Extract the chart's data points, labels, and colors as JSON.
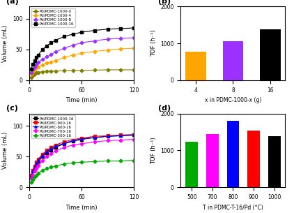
{
  "panel_a": {
    "label": "(a)",
    "xlabel": "Time (min)",
    "ylabel": "Volume (mL)",
    "xlim": [
      0,
      120
    ],
    "ylim": [
      0,
      120
    ],
    "xticks": [
      0,
      60,
      120
    ],
    "yticks": [
      0,
      50,
      100
    ],
    "series": [
      {
        "name": "Pd/PDMC-1000-0",
        "color": "#808000",
        "marker": "D",
        "time": [
          2,
          4,
          6,
          8,
          10,
          15,
          20,
          25,
          30,
          40,
          50,
          60,
          75,
          90,
          105,
          120
        ],
        "volume": [
          5,
          8,
          10,
          12,
          13,
          14,
          14.5,
          15,
          15,
          15.5,
          16,
          16,
          16.5,
          17,
          17,
          17
        ]
      },
      {
        "name": "Pd/PDMC-1000-4",
        "color": "#FFA500",
        "marker": "D",
        "time": [
          2,
          4,
          6,
          8,
          10,
          15,
          20,
          25,
          30,
          40,
          50,
          60,
          75,
          90,
          105,
          120
        ],
        "volume": [
          10,
          15,
          18,
          20,
          22,
          25,
          28,
          30,
          32,
          37,
          41,
          44,
          47,
          49,
          51,
          52
        ]
      },
      {
        "name": "Pd/PDMC-1000-8",
        "color": "#9B30FF",
        "marker": "D",
        "time": [
          2,
          4,
          6,
          8,
          10,
          15,
          20,
          25,
          30,
          40,
          50,
          60,
          75,
          90,
          105,
          120
        ],
        "volume": [
          12,
          18,
          22,
          26,
          29,
          34,
          38,
          42,
          46,
          52,
          57,
          61,
          64,
          67,
          68,
          69
        ]
      },
      {
        "name": "Pd/PDMC-1000-16",
        "color": "#000000",
        "marker": "s",
        "time": [
          2,
          4,
          6,
          8,
          10,
          15,
          20,
          25,
          30,
          40,
          50,
          60,
          75,
          90,
          105,
          120
        ],
        "volume": [
          18,
          26,
          32,
          37,
          41,
          50,
          56,
          61,
          65,
          71,
          75,
          78,
          81,
          83,
          84,
          85
        ]
      }
    ]
  },
  "panel_b": {
    "label": "(b)",
    "xlabel": "x in PDMC-1000-x (g)",
    "ylabel": "TOF (h⁻¹)",
    "ylim": [
      0,
      2000
    ],
    "yticks": [
      0,
      1000,
      2000
    ],
    "categories": [
      "4",
      "8",
      "16"
    ],
    "values": [
      780,
      1060,
      1380
    ],
    "colors": [
      "#FFA500",
      "#9B30FF",
      "#000000"
    ]
  },
  "panel_c": {
    "label": "(c)",
    "xlabel": "Time (min)",
    "ylabel": "Volume (mL)",
    "xlim": [
      0,
      120
    ],
    "ylim": [
      0,
      120
    ],
    "xticks": [
      0,
      60,
      120
    ],
    "yticks": [
      0,
      50,
      100
    ],
    "series": [
      {
        "name": "Pd/PDMC-1000-16",
        "color": "#000000",
        "marker": "s",
        "time": [
          2,
          4,
          6,
          8,
          10,
          15,
          20,
          25,
          30,
          40,
          50,
          60,
          75,
          90,
          105,
          120
        ],
        "volume": [
          18,
          26,
          32,
          37,
          41,
          50,
          56,
          61,
          65,
          71,
          75,
          78,
          81,
          83,
          84,
          85
        ]
      },
      {
        "name": "Pd/PDMC-900-16",
        "color": "#FF0000",
        "marker": "s",
        "time": [
          2,
          4,
          6,
          8,
          10,
          15,
          20,
          25,
          30,
          40,
          50,
          60,
          75,
          90,
          105,
          120
        ],
        "volume": [
          20,
          28,
          35,
          41,
          46,
          54,
          60,
          65,
          69,
          74,
          78,
          80,
          83,
          84,
          85,
          86
        ]
      },
      {
        "name": "Pd/PDMC-800-16",
        "color": "#0000FF",
        "marker": "^",
        "time": [
          2,
          4,
          6,
          8,
          10,
          15,
          20,
          25,
          30,
          40,
          50,
          60,
          75,
          90,
          105,
          120
        ],
        "volume": [
          18,
          26,
          33,
          39,
          44,
          52,
          58,
          63,
          67,
          72,
          76,
          79,
          81,
          83,
          84,
          85
        ]
      },
      {
        "name": "Pd/PDMC-700-16",
        "color": "#FF00FF",
        "marker": "D",
        "time": [
          2,
          4,
          6,
          8,
          10,
          15,
          20,
          25,
          30,
          40,
          50,
          60,
          75,
          90,
          105,
          120
        ],
        "volume": [
          14,
          20,
          26,
          31,
          36,
          43,
          50,
          55,
          59,
          65,
          69,
          71,
          74,
          76,
          77,
          78
        ]
      },
      {
        "name": "Pd/PDMC-500-16",
        "color": "#00AA00",
        "marker": "D",
        "time": [
          2,
          4,
          6,
          8,
          10,
          15,
          20,
          25,
          30,
          40,
          50,
          60,
          75,
          90,
          105,
          120
        ],
        "volume": [
          8,
          13,
          17,
          20,
          23,
          28,
          31,
          33,
          35,
          38,
          40,
          41,
          42,
          43,
          43,
          44
        ]
      }
    ]
  },
  "panel_d": {
    "label": "(d)",
    "xlabel": "T in PDMC-T-16/Pd (°C)",
    "ylabel": "TOF (h⁻¹)",
    "ylim": [
      0,
      2000
    ],
    "yticks": [
      0,
      1000,
      2000
    ],
    "categories": [
      "500",
      "700",
      "800",
      "900",
      "1000"
    ],
    "values": [
      1230,
      1450,
      1800,
      1530,
      1380
    ],
    "colors": [
      "#00AA00",
      "#FF00FF",
      "#0000FF",
      "#FF0000",
      "#000000"
    ]
  }
}
